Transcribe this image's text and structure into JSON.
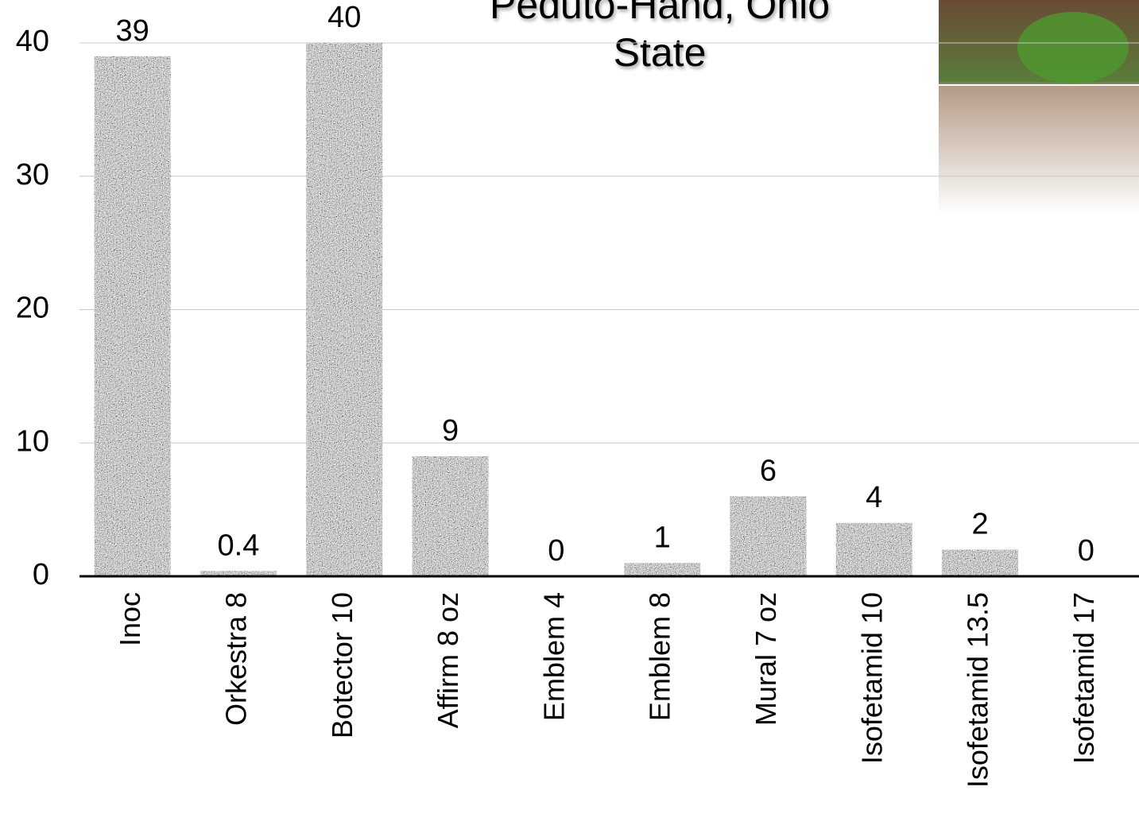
{
  "chart_data": {
    "type": "bar",
    "title": "Peduto-Hand, Ohio State",
    "categories": [
      "Inoc",
      "Orkestra 8",
      "Botector 10",
      "Affirm 8 oz",
      "Emblem 4",
      "Emblem 8",
      "Mural 7 oz",
      "Isofetamid 10",
      "Isofetamid 13.5",
      "Isofetamid 17"
    ],
    "values": [
      39,
      0.4,
      40,
      9,
      0,
      1,
      6,
      4,
      2,
      0
    ],
    "color": "#9a9a9a",
    "ylim": [
      0,
      40
    ],
    "yticks": [
      0,
      10,
      20,
      30,
      40
    ],
    "grid": true
  }
}
